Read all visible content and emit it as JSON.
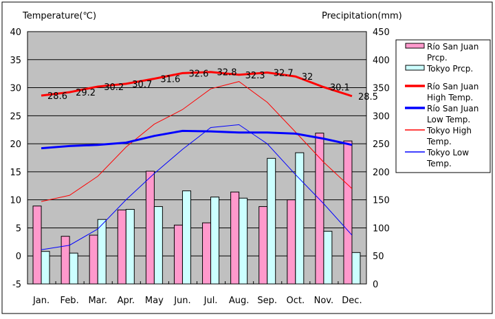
{
  "chart_data": {
    "type": "bar+line",
    "left_axis_label": "Temperature(℃)",
    "right_axis_label": "Precipitation(mm)",
    "categories": [
      "Jan.",
      "Feb.",
      "Mar.",
      "Apr.",
      "May",
      "Jun.",
      "Jul.",
      "Aug.",
      "Sep.",
      "Oct.",
      "Nov.",
      "Dec."
    ],
    "ylim_left": [
      -5,
      40
    ],
    "left_ticks": [
      -5,
      0,
      5,
      10,
      15,
      20,
      25,
      30,
      35,
      40
    ],
    "ylim_right": [
      0,
      450
    ],
    "right_ticks": [
      0,
      50,
      100,
      150,
      200,
      250,
      300,
      350,
      400,
      450
    ],
    "grid": true,
    "legend_placement": "right",
    "bar_series": [
      {
        "name": "Río San Juan Prcp.",
        "legend": [
          "Río San Juan",
          "Prcp."
        ],
        "color": "#ff99cc",
        "values": [
          139,
          85,
          87,
          132,
          201,
          105,
          109,
          164,
          138,
          150,
          269,
          255
        ]
      },
      {
        "name": "Tokyo Prcp.",
        "legend": [
          "Tokyo Prcp."
        ],
        "color": "#ccffff",
        "values": [
          58,
          55,
          115,
          133,
          138,
          166,
          155,
          153,
          224,
          234,
          94,
          56
        ]
      }
    ],
    "line_series": [
      {
        "name": "Río San Juan High Temp.",
        "legend": [
          "Río San Juan",
          "High Temp."
        ],
        "color": "#ff0000",
        "width": 3,
        "labeled": true,
        "values": [
          28.6,
          29.2,
          30.2,
          30.7,
          31.6,
          32.6,
          32.8,
          32.3,
          32.7,
          32,
          30.1,
          28.5
        ],
        "labels": [
          "28.6",
          "29.2",
          "30.2",
          "30.7",
          "31.6",
          "32.6",
          "32.8",
          "32.3",
          "32.7",
          "32",
          "30.1",
          "28.5"
        ]
      },
      {
        "name": "Río San Juan Low Temp.",
        "legend": [
          "Río San Juan",
          "Low Temp."
        ],
        "color": "#0000ff",
        "width": 3,
        "values": [
          19.2,
          19.6,
          19.8,
          20.2,
          21.4,
          22.3,
          22.2,
          22.0,
          22.0,
          21.8,
          20.9,
          19.8
        ]
      },
      {
        "name": "Tokyo High Temp.",
        "legend": [
          "Tokyo High",
          "Temp."
        ],
        "color": "#ff0000",
        "width": 1,
        "values": [
          9.7,
          10.8,
          14.2,
          19.4,
          23.5,
          26.1,
          29.8,
          31.1,
          27.4,
          22.1,
          16.7,
          12.0
        ]
      },
      {
        "name": "Tokyo Low Temp.",
        "legend": [
          "Tokyo Low",
          "Temp."
        ],
        "color": "#0000ff",
        "width": 1,
        "values": [
          1.1,
          1.9,
          4.8,
          10.0,
          14.7,
          19.0,
          22.9,
          23.4,
          20.0,
          14.5,
          9.3,
          3.7
        ]
      }
    ]
  }
}
